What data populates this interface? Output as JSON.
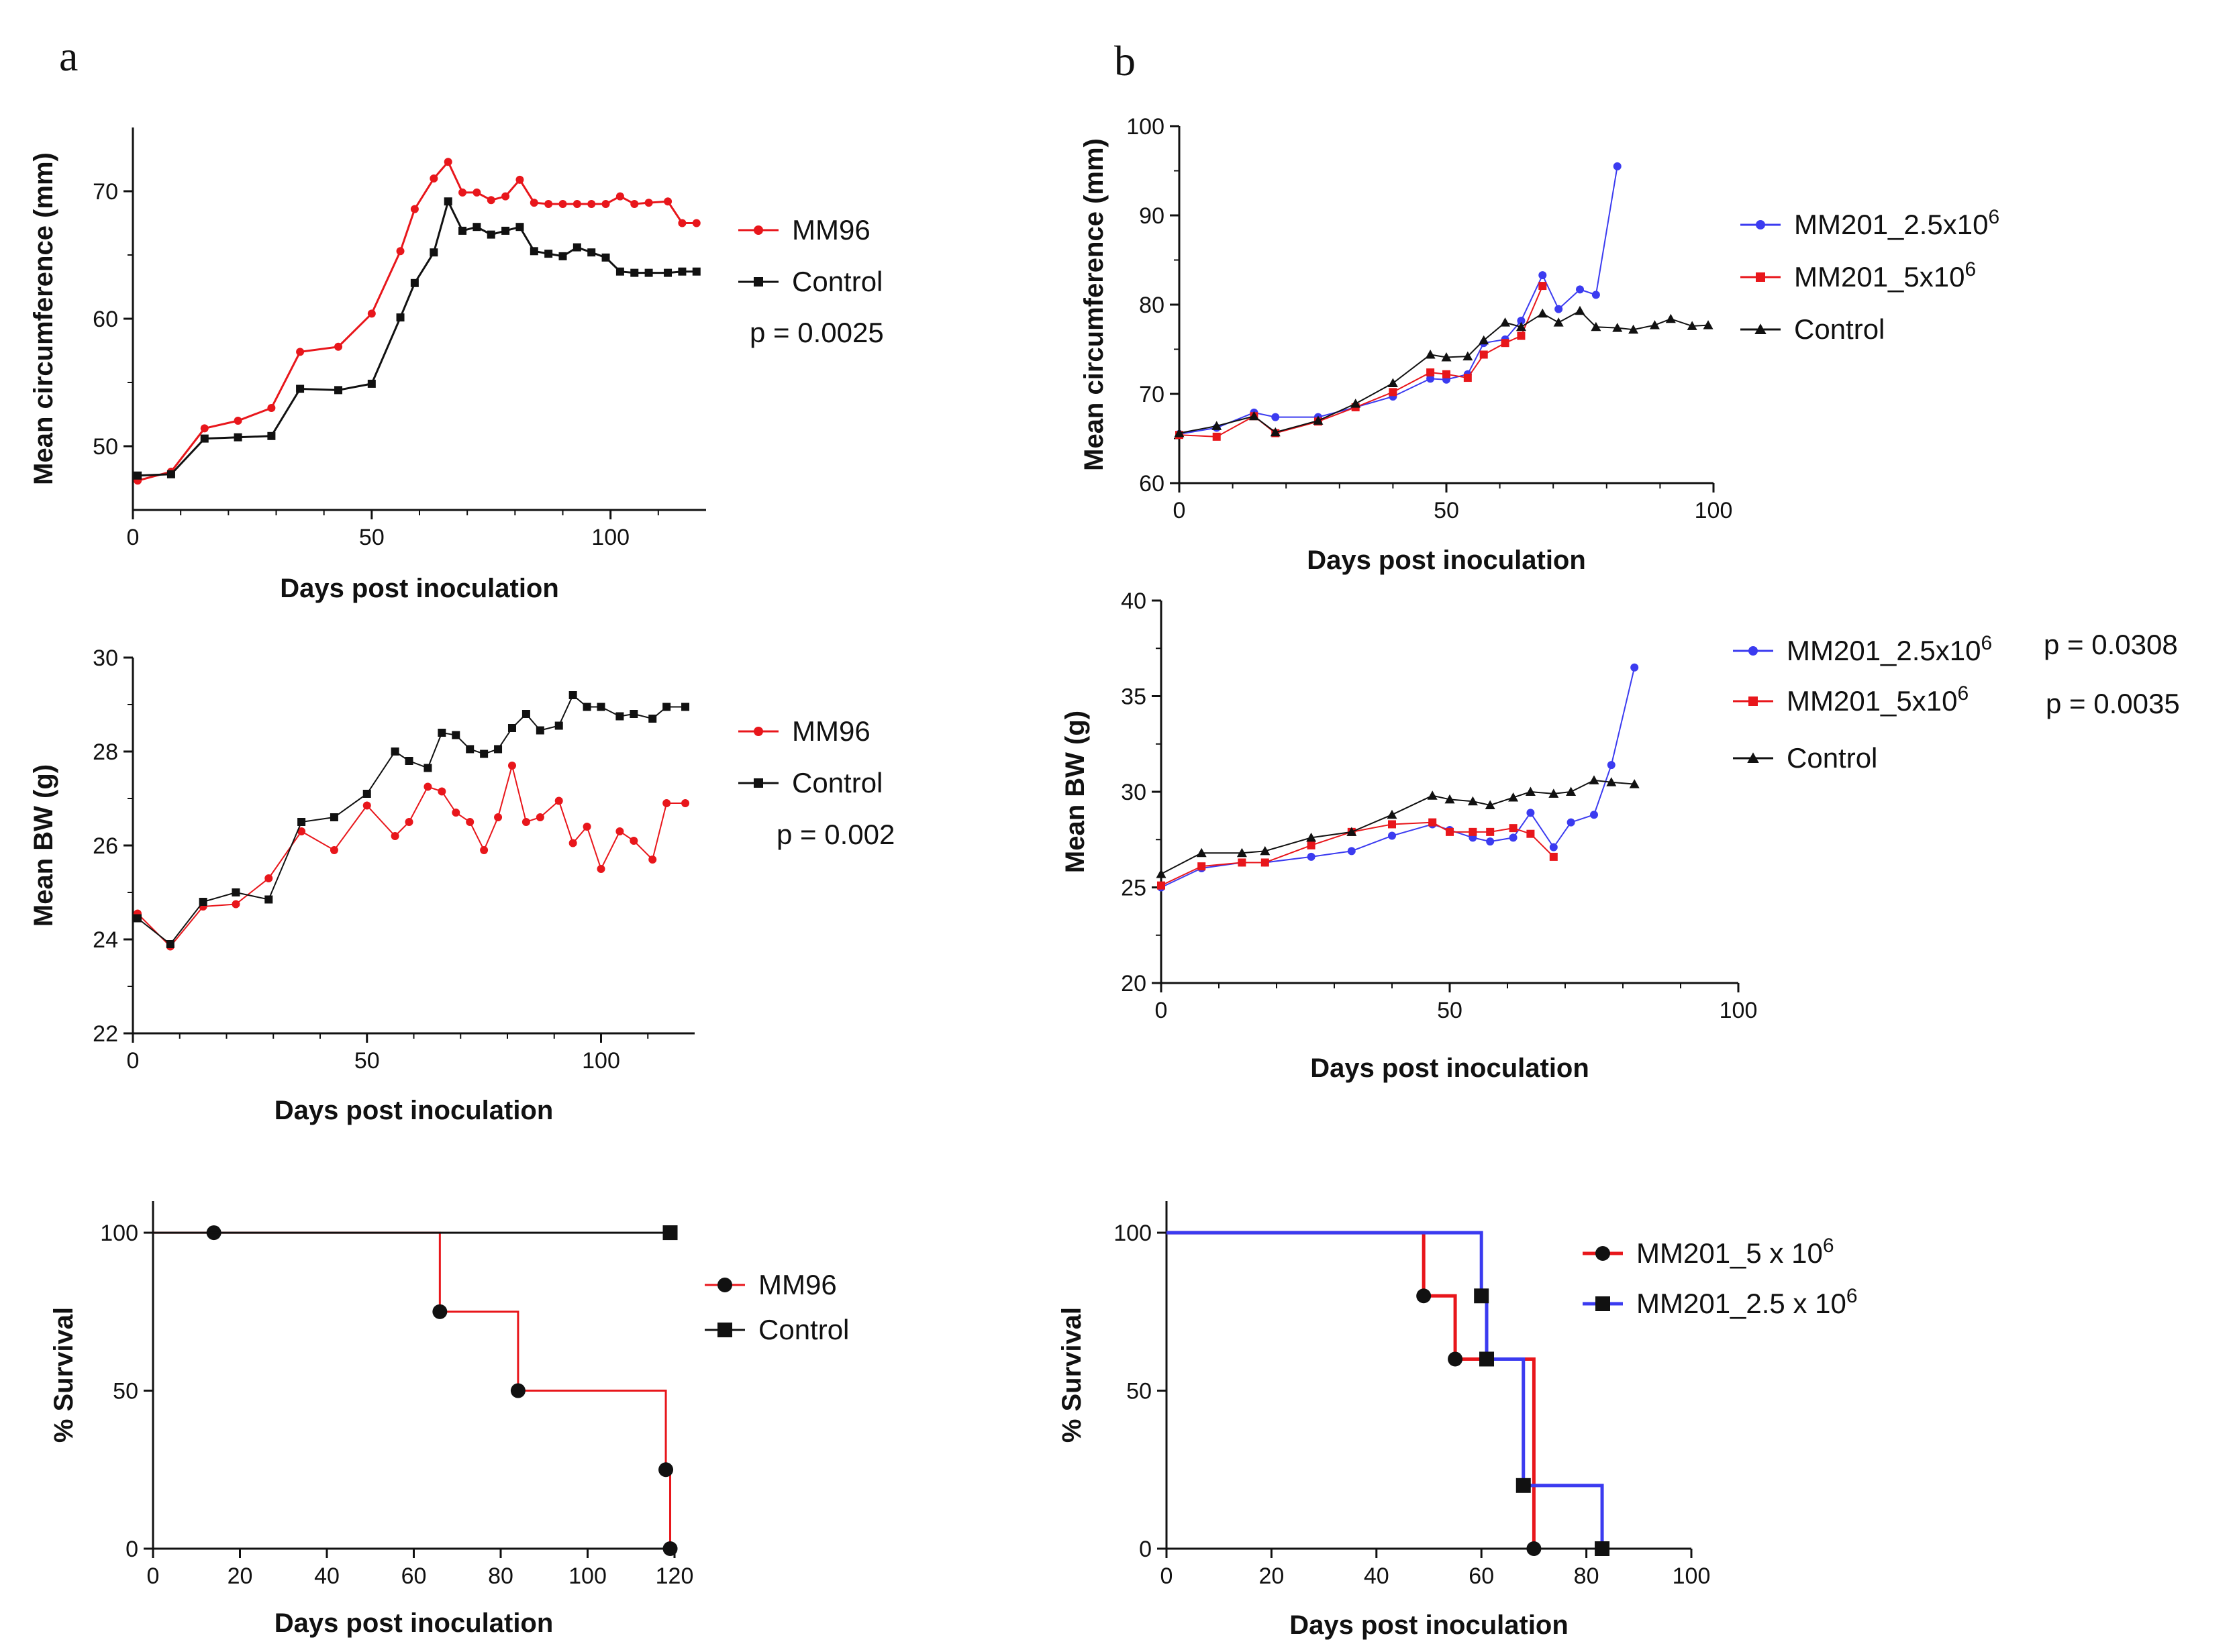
{
  "panel_labels": [
    "a",
    "b"
  ],
  "colors": {
    "red": "#e8161b",
    "black": "#111111",
    "blue": "#3b3bf0"
  },
  "chart_data": [
    {
      "id": "a1",
      "type": "line",
      "ylabel": "Mean circumference (mm)",
      "xlabel": "Days post inoculation",
      "xlim": [
        0,
        120
      ],
      "ylim": [
        45,
        75
      ],
      "xticks": [
        0,
        50,
        100
      ],
      "yticks": [
        50,
        60,
        70
      ],
      "p_values": [
        "p = 0.0025"
      ],
      "series": [
        {
          "name": "MM96",
          "color": "#e8161b",
          "marker": "circle",
          "lw": 3,
          "x": [
            1,
            8,
            15,
            22,
            29,
            35,
            43,
            50,
            56,
            59,
            63,
            66,
            69,
            72,
            75,
            78,
            81,
            84,
            87,
            90,
            93,
            96,
            99,
            102,
            105,
            108,
            112,
            115,
            118
          ],
          "y": [
            47.3,
            48,
            51.4,
            52,
            53,
            57.4,
            57.8,
            60.4,
            65.3,
            68.6,
            71,
            72.3,
            69.9,
            69.9,
            69.3,
            69.6,
            70.9,
            69.1,
            69,
            69,
            69,
            69,
            69,
            69.6,
            69,
            69.1,
            69.2,
            67.5,
            67.5
          ]
        },
        {
          "name": "Control",
          "color": "#111111",
          "marker": "square",
          "lw": 3,
          "x": [
            1,
            8,
            15,
            22,
            29,
            35,
            43,
            50,
            56,
            59,
            63,
            66,
            69,
            72,
            75,
            78,
            81,
            84,
            87,
            90,
            93,
            96,
            99,
            102,
            105,
            108,
            112,
            115,
            118
          ],
          "y": [
            47.7,
            47.8,
            50.6,
            50.7,
            50.8,
            54.5,
            54.4,
            54.9,
            60.1,
            62.8,
            65.2,
            69.2,
            66.9,
            67.2,
            66.6,
            66.9,
            67.2,
            65.3,
            65.1,
            64.9,
            65.6,
            65.2,
            64.8,
            63.7,
            63.6,
            63.6,
            63.6,
            63.7,
            63.7
          ]
        }
      ]
    },
    {
      "id": "a2",
      "type": "line",
      "ylabel": "Mean BW (g)",
      "xlabel": "Days post inoculation",
      "xlim": [
        0,
        120
      ],
      "ylim": [
        22,
        30
      ],
      "xticks": [
        0,
        50,
        100
      ],
      "yticks": [
        22,
        24,
        26,
        28,
        30
      ],
      "p_values": [
        "p = 0.002"
      ],
      "series": [
        {
          "name": "MM96",
          "color": "#e8161b",
          "marker": "circle",
          "lw": 2,
          "x": [
            1,
            8,
            15,
            22,
            29,
            36,
            43,
            50,
            56,
            59,
            63,
            66,
            69,
            72,
            75,
            78,
            81,
            84,
            87,
            91,
            94,
            97,
            100,
            104,
            107,
            111,
            114,
            118
          ],
          "y": [
            24.55,
            23.85,
            24.7,
            24.75,
            25.3,
            26.3,
            25.9,
            26.85,
            26.2,
            26.5,
            27.25,
            27.15,
            26.7,
            26.5,
            25.9,
            26.6,
            27.7,
            26.5,
            26.6,
            26.95,
            26.05,
            26.4,
            25.5,
            26.3,
            26.1,
            25.7,
            26.9,
            26.9
          ]
        },
        {
          "name": "Control",
          "color": "#111111",
          "marker": "square",
          "lw": 2,
          "x": [
            1,
            8,
            15,
            22,
            29,
            36,
            43,
            50,
            56,
            59,
            63,
            66,
            69,
            72,
            75,
            78,
            81,
            84,
            87,
            91,
            94,
            97,
            100,
            104,
            107,
            111,
            114,
            118
          ],
          "y": [
            24.45,
            23.9,
            24.8,
            25.0,
            24.85,
            26.5,
            26.6,
            27.1,
            28.0,
            27.8,
            27.65,
            28.4,
            28.35,
            28.05,
            27.95,
            28.05,
            28.5,
            28.8,
            28.45,
            28.55,
            29.2,
            28.95,
            28.95,
            28.75,
            28.8,
            28.7,
            28.95,
            28.95
          ]
        }
      ]
    },
    {
      "id": "a3",
      "type": "survival",
      "ylabel": "% Survival",
      "xlabel": "Days post inoculation",
      "xlim": [
        0,
        120
      ],
      "ylim": [
        0,
        110
      ],
      "xticks": [
        0,
        20,
        40,
        60,
        80,
        100,
        120
      ],
      "yticks": [
        0,
        50,
        100
      ],
      "series": [
        {
          "name": "MM96",
          "color": "#e8161b",
          "marker": "circle",
          "lw": 3,
          "steps": [
            [
              0,
              100
            ],
            [
              66,
              75
            ],
            [
              84,
              50
            ],
            [
              118,
              25
            ],
            [
              119,
              0
            ]
          ],
          "marks": [
            [
              14,
              100
            ],
            [
              66,
              75
            ],
            [
              84,
              50
            ],
            [
              118,
              25
            ],
            [
              119,
              0
            ]
          ]
        },
        {
          "name": "Control",
          "color": "#111111",
          "marker": "square",
          "lw": 3,
          "steps": [
            [
              0,
              100
            ],
            [
              119,
              100
            ]
          ],
          "marks": [
            [
              119,
              100
            ]
          ]
        }
      ]
    },
    {
      "id": "b1",
      "type": "line",
      "ylabel": "Mean circumference (mm)",
      "xlabel": "Days post inoculation",
      "xlim": [
        0,
        100
      ],
      "ylim": [
        60,
        100
      ],
      "xticks": [
        0,
        50,
        100
      ],
      "yticks": [
        60,
        70,
        80,
        90,
        100
      ],
      "p_values": [],
      "series": [
        {
          "name": "MM201_2.5x10",
          "sup": "6",
          "color": "#3b3bf0",
          "marker": "circle",
          "lw": 2,
          "x": [
            0,
            7,
            14,
            18,
            26,
            33,
            40,
            47,
            50,
            54,
            57,
            61,
            64,
            68,
            71,
            75,
            78,
            82
          ],
          "y": [
            65.5,
            66.2,
            67.9,
            67.4,
            67.4,
            68.5,
            69.7,
            71.7,
            71.6,
            72.2,
            75.7,
            76.1,
            78.2,
            83.3,
            79.5,
            81.7,
            81.1,
            95.5
          ]
        },
        {
          "name": "MM201_5x10",
          "sup": "6",
          "color": "#e8161b",
          "marker": "square",
          "lw": 2,
          "x": [
            0,
            7,
            14,
            18,
            26,
            33,
            40,
            47,
            50,
            54,
            57,
            61,
            64,
            68
          ],
          "y": [
            65.4,
            65.2,
            67.5,
            65.6,
            66.9,
            68.5,
            70.2,
            72.4,
            72.2,
            71.8,
            74.4,
            75.7,
            76.5,
            82.1
          ]
        },
        {
          "name": "Control",
          "color": "#111111",
          "marker": "triangle",
          "lw": 2,
          "x": [
            0,
            7,
            14,
            18,
            26,
            33,
            40,
            47,
            50,
            54,
            57,
            61,
            64,
            68,
            71,
            75,
            78,
            82,
            85,
            89,
            92,
            96,
            99
          ],
          "y": [
            65.6,
            66.4,
            67.5,
            65.7,
            67,
            68.9,
            71.2,
            74.4,
            74.1,
            74.2,
            76,
            78,
            77.5,
            79,
            78,
            79.3,
            77.5,
            77.4,
            77.2,
            77.7,
            78.4,
            77.6,
            77.7
          ]
        }
      ]
    },
    {
      "id": "b2",
      "type": "line",
      "ylabel": "Mean BW (g)",
      "xlabel": "Days post inoculation",
      "xlim": [
        0,
        100
      ],
      "ylim": [
        20,
        40
      ],
      "xticks": [
        0,
        50,
        100
      ],
      "yticks": [
        20,
        25,
        30,
        35,
        40
      ],
      "p_values": [
        "p = 0.0308",
        "p = 0.0035"
      ],
      "series": [
        {
          "name": "MM201_2.5x10",
          "sup": "6",
          "color": "#3b3bf0",
          "marker": "circle",
          "lw": 2,
          "x": [
            0,
            7,
            14,
            18,
            26,
            33,
            40,
            47,
            50,
            54,
            57,
            61,
            64,
            68,
            71,
            75,
            78,
            82
          ],
          "y": [
            25,
            26,
            26.3,
            26.3,
            26.6,
            26.9,
            27.7,
            28.3,
            28,
            27.6,
            27.4,
            27.6,
            28.9,
            27.1,
            28.4,
            28.8,
            31.4,
            36.5
          ]
        },
        {
          "name": "MM201_5x10",
          "sup": "6",
          "color": "#e8161b",
          "marker": "square",
          "lw": 2,
          "x": [
            0,
            7,
            14,
            18,
            26,
            33,
            40,
            47,
            50,
            54,
            57,
            61,
            64,
            68
          ],
          "y": [
            25.1,
            26.1,
            26.3,
            26.3,
            27.2,
            27.9,
            28.3,
            28.4,
            27.9,
            27.9,
            27.9,
            28.1,
            27.8,
            26.6
          ]
        },
        {
          "name": "Control",
          "color": "#111111",
          "marker": "triangle",
          "lw": 2,
          "x": [
            0,
            7,
            14,
            18,
            26,
            33,
            40,
            47,
            50,
            54,
            57,
            61,
            64,
            68,
            71,
            75,
            78,
            82
          ],
          "y": [
            25.7,
            26.8,
            26.8,
            26.9,
            27.6,
            27.9,
            28.8,
            29.8,
            29.6,
            29.5,
            29.3,
            29.7,
            30,
            29.9,
            30,
            30.6,
            30.5,
            30.4
          ]
        }
      ]
    },
    {
      "id": "b3",
      "type": "survival",
      "ylabel": "% Survival",
      "xlabel": "Days post inoculation",
      "xlim": [
        0,
        100
      ],
      "ylim": [
        0,
        110
      ],
      "xticks": [
        0,
        20,
        40,
        60,
        80,
        100
      ],
      "yticks": [
        0,
        50,
        100
      ],
      "series": [
        {
          "name": "MM201_5 x 10",
          "sup": "6",
          "color": "#e8161b",
          "marker": "circle",
          "lw": 5,
          "steps": [
            [
              0,
              100
            ],
            [
              49,
              80
            ],
            [
              55,
              60
            ],
            [
              70,
              0
            ]
          ],
          "marks": [
            [
              49,
              80
            ],
            [
              55,
              60
            ],
            [
              70,
              0
            ]
          ]
        },
        {
          "name": "MM201_2.5 x 10",
          "sup": "6",
          "color": "#3b3bf0",
          "marker": "square",
          "lw": 5,
          "steps": [
            [
              0,
              100
            ],
            [
              60,
              80
            ],
            [
              61,
              60
            ],
            [
              68,
              20
            ],
            [
              83,
              0
            ]
          ],
          "marks": [
            [
              60,
              80
            ],
            [
              61,
              60
            ],
            [
              68,
              20
            ],
            [
              83,
              0
            ]
          ]
        }
      ]
    }
  ]
}
